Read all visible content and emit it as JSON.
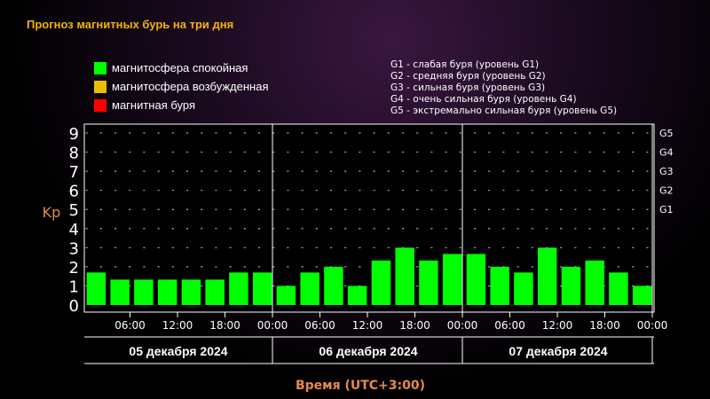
{
  "title": "Прогноз магнитных бурь на три дня",
  "legend": {
    "items": [
      {
        "label": "магнитосфера спокойная",
        "color": "#00ff00"
      },
      {
        "label": "магнитосфера возбужденная",
        "color": "#e8c000"
      },
      {
        "label": "магнитная буря",
        "color": "#ff0000"
      }
    ]
  },
  "storm_levels": [
    "G1 - слабая буря (уровень G1)",
    "G2 - средняя буря (уровень G2)",
    "G3 - сильная буря (уровень G3)",
    "G4 - очень сильная буря (уровень G4)",
    "G5 - экстремально сильная буря (уровень G5)"
  ],
  "chart_data": {
    "type": "bar",
    "ylabel": "Kp",
    "xlabel": "Время (UTC+3:00)",
    "ylim": [
      0,
      9
    ],
    "yticks": [
      "0",
      "1",
      "2",
      "3",
      "4",
      "5",
      "6",
      "7",
      "8",
      "9"
    ],
    "right_ticks": [
      {
        "value": 5,
        "label": "G1"
      },
      {
        "value": 6,
        "label": "G2"
      },
      {
        "value": 7,
        "label": "G3"
      },
      {
        "value": 8,
        "label": "G4"
      },
      {
        "value": 9,
        "label": "G5"
      }
    ],
    "time_labels": [
      "06:00",
      "12:00",
      "18:00",
      "00:00",
      "06:00",
      "12:00",
      "18:00",
      "00:00",
      "06:00",
      "12:00",
      "18:00",
      "00:00"
    ],
    "days": [
      "05 декабря 2024",
      "06 декабря 2024",
      "07 декабря 2024"
    ],
    "bar_color": "#00ff00",
    "grid": true,
    "values": [
      1.7,
      1.33,
      1.33,
      1.33,
      1.33,
      1.33,
      1.7,
      1.7,
      1.0,
      1.7,
      2.0,
      1.0,
      2.33,
      3.0,
      2.33,
      2.67,
      2.67,
      2.0,
      1.7,
      3.0,
      2.0,
      2.33,
      1.7,
      1.0
    ]
  }
}
